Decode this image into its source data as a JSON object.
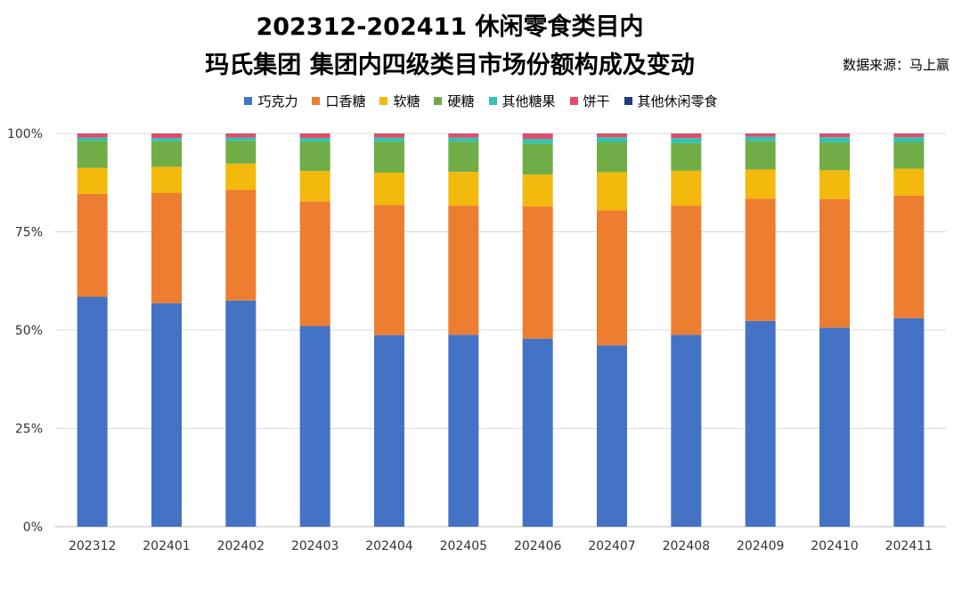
{
  "chart_data": {
    "type": "bar",
    "stacked": true,
    "percent": true,
    "title_line1": "202312-202411 休闲零食类目内",
    "title_line2": "玛氏集团 集团内四级类目市场份额构成及变动",
    "source": "数据来源：马上赢",
    "categories": [
      "202312",
      "202401",
      "202402",
      "202403",
      "202404",
      "202405",
      "202406",
      "202407",
      "202408",
      "202409",
      "202410",
      "202411"
    ],
    "y_ticks": [
      "0%",
      "25%",
      "50%",
      "75%",
      "100%"
    ],
    "ylim": [
      0,
      100
    ],
    "series": [
      {
        "name": "巧克力",
        "color": "#4472C4",
        "values": [
          58.5,
          56.8,
          57.5,
          51.0,
          48.7,
          48.8,
          47.8,
          46.1,
          48.8,
          52.3,
          50.6,
          53.0
        ]
      },
      {
        "name": "口香糖",
        "color": "#ED7D31",
        "values": [
          26.2,
          28.0,
          28.1,
          31.7,
          33.1,
          32.8,
          33.6,
          34.3,
          32.8,
          31.1,
          32.7,
          31.2
        ]
      },
      {
        "name": "软糖",
        "color": "#F3B90C",
        "values": [
          6.6,
          6.7,
          6.7,
          7.7,
          8.2,
          8.6,
          8.1,
          9.7,
          8.9,
          7.4,
          7.3,
          6.8
        ]
      },
      {
        "name": "硬糖",
        "color": "#70AD47",
        "values": [
          6.9,
          6.5,
          5.8,
          7.5,
          7.9,
          7.7,
          7.9,
          7.7,
          7.0,
          7.2,
          7.1,
          6.8
        ]
      },
      {
        "name": "其他糖果",
        "color": "#2EC4B6",
        "values": [
          0.8,
          0.8,
          0.8,
          0.9,
          1.0,
          1.0,
          1.2,
          1.2,
          1.3,
          1.1,
          1.3,
          1.2
        ]
      },
      {
        "name": "饼干",
        "color": "#E84A6A",
        "values": [
          1.0,
          1.1,
          1.0,
          1.1,
          1.0,
          1.0,
          1.3,
          0.9,
          1.1,
          0.8,
          0.9,
          0.9
        ]
      },
      {
        "name": "其他休闲零食",
        "color": "#1F3D7A",
        "values": [
          0.05,
          0.05,
          0.05,
          0.05,
          0.05,
          0.05,
          0.05,
          0.05,
          0.05,
          0.05,
          0.05,
          0.05
        ]
      }
    ]
  }
}
